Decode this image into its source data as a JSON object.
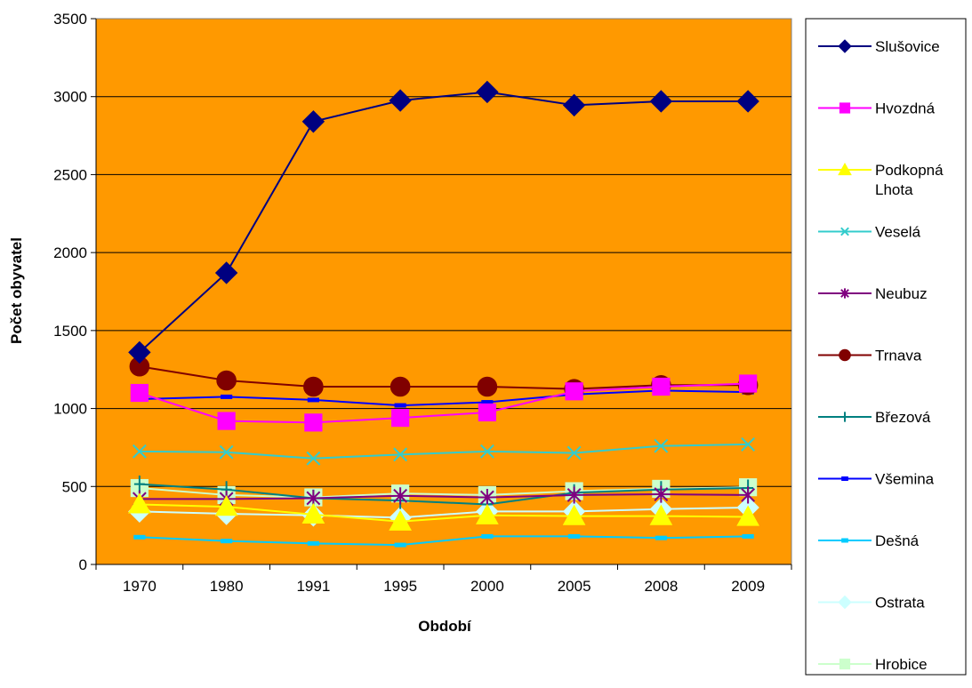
{
  "chart_data": {
    "type": "line",
    "title": "",
    "xlabel": "Období",
    "ylabel": "Počet obyvatel",
    "ylim": [
      0,
      3500
    ],
    "yticks": [
      0,
      500,
      1000,
      1500,
      2000,
      2500,
      3000,
      3500
    ],
    "grid": "horizontal",
    "legend_position": "right",
    "plot_background": "#FF9900",
    "categories": [
      "1970",
      "1980",
      "1991",
      "1995",
      "2000",
      "2005",
      "2008",
      "2009"
    ],
    "series": [
      {
        "name": "Slušovice",
        "color": "#000080",
        "marker": "diamond",
        "values": [
          1360,
          1870,
          2840,
          2975,
          3030,
          2945,
          2970,
          2970
        ]
      },
      {
        "name": "Hvozdná",
        "color": "#FF00FF",
        "marker": "square",
        "values": [
          1100,
          920,
          910,
          940,
          975,
          1110,
          1140,
          1160
        ]
      },
      {
        "name": "Podkopná Lhota",
        "label_lines": [
          "Podkopná",
          "Lhota"
        ],
        "color": "#FFFF00",
        "marker": "triangle",
        "values": [
          385,
          370,
          320,
          275,
          315,
          310,
          310,
          305
        ]
      },
      {
        "name": "Veselá",
        "color": "#33CCCC",
        "marker": "x",
        "values": [
          725,
          720,
          680,
          705,
          725,
          715,
          760,
          770
        ]
      },
      {
        "name": "Neubuz",
        "color": "#800080",
        "marker": "star",
        "values": [
          420,
          420,
          425,
          440,
          430,
          445,
          450,
          445
        ]
      },
      {
        "name": "Trnava",
        "color": "#800000",
        "marker": "circle",
        "values": [
          1270,
          1180,
          1140,
          1140,
          1140,
          1125,
          1150,
          1150
        ]
      },
      {
        "name": "Březová",
        "color": "#008080",
        "marker": "plus",
        "values": [
          515,
          480,
          425,
          410,
          385,
          460,
          480,
          490
        ]
      },
      {
        "name": "Všemina",
        "color": "#0000FF",
        "marker": "dash",
        "values": [
          1060,
          1075,
          1055,
          1020,
          1040,
          1090,
          1115,
          1105
        ]
      },
      {
        "name": "Dešná",
        "color": "#00CCFF",
        "marker": "dash",
        "values": [
          175,
          150,
          135,
          125,
          180,
          180,
          170,
          180
        ]
      },
      {
        "name": "Ostrata",
        "color": "#CCFFFF",
        "marker": "diamond",
        "values": [
          340,
          325,
          315,
          300,
          340,
          340,
          355,
          365
        ]
      },
      {
        "name": "Hrobice",
        "color": "#CCFFCC",
        "marker": "square",
        "values": [
          490,
          445,
          430,
          455,
          445,
          470,
          485,
          495
        ]
      }
    ]
  }
}
